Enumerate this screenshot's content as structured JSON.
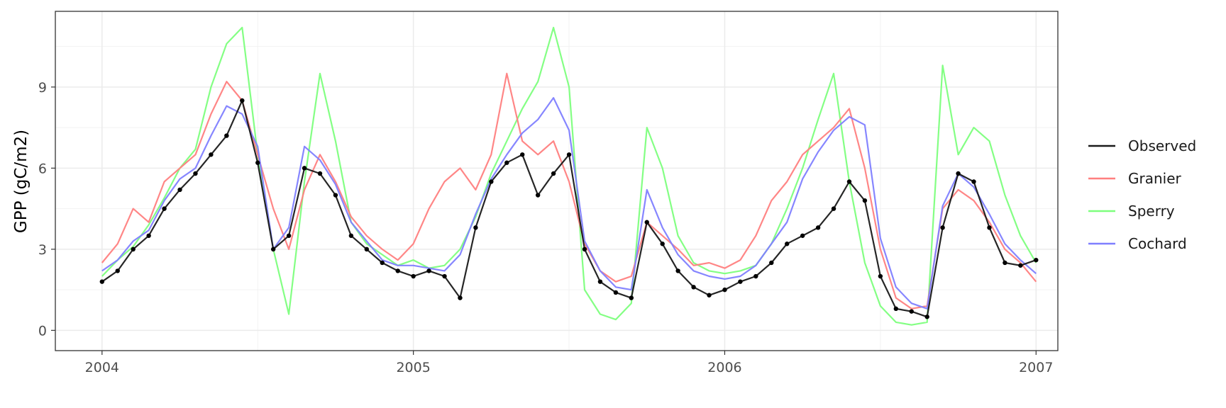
{
  "chart_data": {
    "type": "line",
    "title": "",
    "xlabel": "",
    "ylabel": "GPP (gC/m2)",
    "x_range": [
      2003.85,
      2007.07
    ],
    "ylim": [
      -0.75,
      11.8
    ],
    "x_ticks": [
      {
        "value": 2004,
        "label": "2004"
      },
      {
        "value": 2005,
        "label": "2005"
      },
      {
        "value": 2006,
        "label": "2006"
      },
      {
        "value": 2007,
        "label": "2007"
      }
    ],
    "y_ticks": [
      {
        "value": 0,
        "label": "0"
      },
      {
        "value": 3,
        "label": "3"
      },
      {
        "value": 6,
        "label": "6"
      },
      {
        "value": 9,
        "label": "9"
      }
    ],
    "grid": true,
    "legend_position": "right",
    "series": [
      {
        "name": "Sperry",
        "color": "#7dff7d",
        "x": [
          2004.0,
          2004.05,
          2004.1,
          2004.15,
          2004.2,
          2004.25,
          2004.3,
          2004.35,
          2004.4,
          2004.45,
          2004.5,
          2004.55,
          2004.6,
          2004.65,
          2004.7,
          2004.75,
          2004.8,
          2004.85,
          2004.9,
          2004.95,
          2005.0,
          2005.05,
          2005.1,
          2005.15,
          2005.2,
          2005.25,
          2005.3,
          2005.35,
          2005.4,
          2005.45,
          2005.5,
          2005.55,
          2005.6,
          2005.65,
          2005.7,
          2005.75,
          2005.8,
          2005.85,
          2005.9,
          2005.95,
          2006.0,
          2006.05,
          2006.1,
          2006.15,
          2006.2,
          2006.25,
          2006.3,
          2006.35,
          2006.4,
          2006.45,
          2006.5,
          2006.55,
          2006.6,
          2006.65,
          2006.7,
          2006.75,
          2006.8,
          2006.85,
          2006.9,
          2006.95,
          2007.0
        ],
        "values": [
          2.0,
          2.6,
          3.1,
          3.9,
          4.9,
          6.0,
          6.7,
          9.0,
          10.6,
          11.2,
          6.5,
          3.0,
          0.6,
          5.5,
          9.5,
          7.0,
          4.0,
          3.2,
          2.8,
          2.4,
          2.6,
          2.3,
          2.4,
          3.0,
          4.2,
          5.8,
          7.0,
          8.2,
          9.2,
          11.2,
          9.0,
          1.5,
          0.6,
          0.4,
          1.0,
          7.5,
          6.0,
          3.5,
          2.5,
          2.2,
          2.1,
          2.2,
          2.4,
          3.2,
          4.5,
          6.0,
          7.8,
          9.5,
          5.5,
          2.5,
          0.9,
          0.3,
          0.2,
          0.3,
          9.8,
          6.5,
          7.5,
          7.0,
          5.0,
          3.5,
          2.5
        ]
      },
      {
        "name": "Granier",
        "color": "#ff7f7f",
        "x": [
          2004.0,
          2004.05,
          2004.1,
          2004.15,
          2004.2,
          2004.25,
          2004.3,
          2004.35,
          2004.4,
          2004.45,
          2004.5,
          2004.55,
          2004.6,
          2004.65,
          2004.7,
          2004.75,
          2004.8,
          2004.85,
          2004.9,
          2004.95,
          2005.0,
          2005.05,
          2005.1,
          2005.15,
          2005.2,
          2005.25,
          2005.3,
          2005.35,
          2005.4,
          2005.45,
          2005.5,
          2005.55,
          2005.6,
          2005.65,
          2005.7,
          2005.75,
          2005.8,
          2005.85,
          2005.9,
          2005.95,
          2006.0,
          2006.05,
          2006.1,
          2006.15,
          2006.2,
          2006.25,
          2006.3,
          2006.35,
          2006.4,
          2006.45,
          2006.5,
          2006.55,
          2006.6,
          2006.65,
          2006.7,
          2006.75,
          2006.8,
          2006.85,
          2006.9,
          2006.95,
          2007.0
        ],
        "values": [
          2.5,
          3.2,
          4.5,
          4.0,
          5.5,
          6.0,
          6.5,
          8.0,
          9.2,
          8.5,
          6.5,
          4.5,
          3.0,
          5.2,
          6.5,
          5.5,
          4.2,
          3.5,
          3.0,
          2.6,
          3.2,
          4.5,
          5.5,
          6.0,
          5.2,
          6.5,
          9.5,
          7.0,
          6.5,
          7.0,
          5.5,
          3.2,
          2.2,
          1.8,
          2.0,
          4.0,
          3.5,
          3.0,
          2.4,
          2.5,
          2.3,
          2.6,
          3.5,
          4.8,
          5.5,
          6.5,
          7.0,
          7.5,
          8.2,
          6.0,
          3.0,
          1.2,
          0.8,
          0.9,
          4.5,
          5.2,
          4.8,
          4.0,
          3.0,
          2.5,
          1.8
        ]
      },
      {
        "name": "Cochard",
        "color": "#7f7fff",
        "x": [
          2004.0,
          2004.05,
          2004.1,
          2004.15,
          2004.2,
          2004.25,
          2004.3,
          2004.35,
          2004.4,
          2004.45,
          2004.5,
          2004.55,
          2004.6,
          2004.65,
          2004.7,
          2004.75,
          2004.8,
          2004.85,
          2004.9,
          2004.95,
          2005.0,
          2005.05,
          2005.1,
          2005.15,
          2005.2,
          2005.25,
          2005.3,
          2005.35,
          2005.4,
          2005.45,
          2005.5,
          2005.55,
          2005.6,
          2005.65,
          2005.7,
          2005.75,
          2005.8,
          2005.85,
          2005.9,
          2005.95,
          2006.0,
          2006.05,
          2006.1,
          2006.15,
          2006.2,
          2006.25,
          2006.3,
          2006.35,
          2006.4,
          2006.45,
          2006.5,
          2006.55,
          2006.6,
          2006.65,
          2006.7,
          2006.75,
          2006.8,
          2006.85,
          2006.9,
          2006.95,
          2007.0
        ],
        "values": [
          2.2,
          2.6,
          3.3,
          3.7,
          4.8,
          5.6,
          6.0,
          7.2,
          8.3,
          8.0,
          6.8,
          3.0,
          3.8,
          6.8,
          6.3,
          5.4,
          4.0,
          3.3,
          2.6,
          2.4,
          2.4,
          2.3,
          2.2,
          2.8,
          4.3,
          5.6,
          6.5,
          7.3,
          7.8,
          8.6,
          7.4,
          3.3,
          2.2,
          1.6,
          1.5,
          5.2,
          3.8,
          2.8,
          2.2,
          2.0,
          1.9,
          2.0,
          2.4,
          3.2,
          4.0,
          5.6,
          6.6,
          7.4,
          7.9,
          7.6,
          3.4,
          1.6,
          1.0,
          0.8,
          4.6,
          5.8,
          5.3,
          4.3,
          3.2,
          2.6,
          2.1
        ]
      },
      {
        "name": "Observed",
        "color": "#1a1a1a",
        "x": [
          2004.0,
          2004.05,
          2004.1,
          2004.15,
          2004.2,
          2004.25,
          2004.3,
          2004.35,
          2004.4,
          2004.45,
          2004.5,
          2004.55,
          2004.6,
          2004.65,
          2004.7,
          2004.75,
          2004.8,
          2004.85,
          2004.9,
          2004.95,
          2005.0,
          2005.05,
          2005.1,
          2005.15,
          2005.2,
          2005.25,
          2005.3,
          2005.35,
          2005.4,
          2005.45,
          2005.5,
          2005.55,
          2005.6,
          2005.65,
          2005.7,
          2005.75,
          2005.8,
          2005.85,
          2005.9,
          2005.95,
          2006.0,
          2006.05,
          2006.1,
          2006.15,
          2006.2,
          2006.25,
          2006.3,
          2006.35,
          2006.4,
          2006.45,
          2006.5,
          2006.55,
          2006.6,
          2006.65,
          2006.7,
          2006.75,
          2006.8,
          2006.85,
          2006.9,
          2006.95,
          2007.0
        ],
        "values": [
          1.8,
          2.2,
          3.0,
          3.5,
          4.5,
          5.2,
          5.8,
          6.5,
          7.2,
          8.5,
          6.2,
          3.0,
          3.5,
          6.0,
          5.8,
          5.0,
          3.5,
          3.0,
          2.5,
          2.2,
          2.0,
          2.2,
          2.0,
          1.2,
          3.8,
          5.5,
          6.2,
          6.5,
          5.0,
          5.8,
          6.5,
          3.0,
          1.8,
          1.4,
          1.2,
          4.0,
          3.2,
          2.2,
          1.6,
          1.3,
          1.5,
          1.8,
          2.0,
          2.5,
          3.2,
          3.5,
          3.8,
          4.5,
          5.5,
          4.8,
          2.0,
          0.8,
          0.7,
          0.5,
          3.8,
          5.8,
          5.5,
          3.8,
          2.5,
          2.4,
          2.6
        ]
      }
    ],
    "legend": [
      {
        "name": "Observed",
        "color": "#1a1a1a"
      },
      {
        "name": "Granier",
        "color": "#ff7f7f"
      },
      {
        "name": "Sperry",
        "color": "#7dff7d"
      },
      {
        "name": "Cochard",
        "color": "#7f7fff"
      }
    ]
  }
}
